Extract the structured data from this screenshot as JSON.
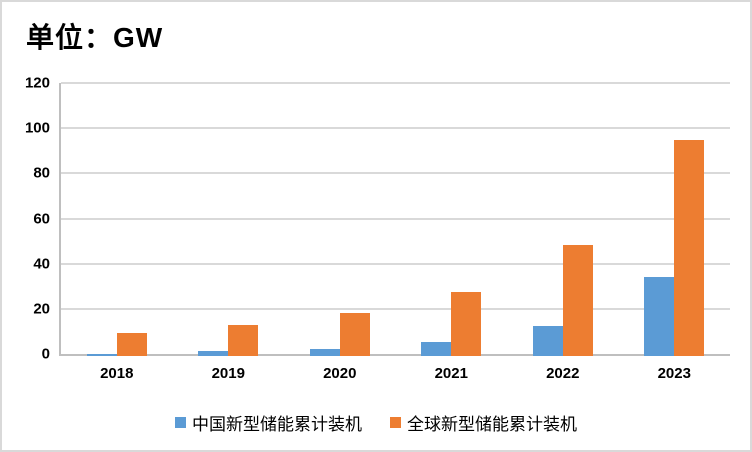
{
  "title": "单位：GW",
  "chart_data": {
    "type": "bar",
    "title": "单位：GW",
    "categories": [
      "2018",
      "2019",
      "2020",
      "2021",
      "2022",
      "2023"
    ],
    "series": [
      {
        "name": "中国新型储能累计装机",
        "color": "#5B9BD5",
        "values": [
          1.1,
          2.1,
          3.3,
          6.0,
          13.5,
          35.0
        ]
      },
      {
        "name": "全球新型储能累计装机",
        "color": "#ED7D31",
        "values": [
          10.0,
          13.9,
          18.9,
          28.5,
          49.0,
          95.5
        ]
      }
    ],
    "xlabel": "",
    "ylabel": "",
    "ylim": [
      0,
      120
    ],
    "yticks": [
      0,
      20,
      40,
      60,
      80,
      100,
      120
    ],
    "grid": true,
    "legend_position": "bottom"
  },
  "colors": {
    "china_series": "#5B9BD5",
    "global_series": "#ED7D31",
    "gridline": "#D9D9D9",
    "axis_line": "#BFBFBF",
    "frame_border": "#D9D9D9",
    "text": "#000000",
    "background": "#FFFFFF"
  }
}
